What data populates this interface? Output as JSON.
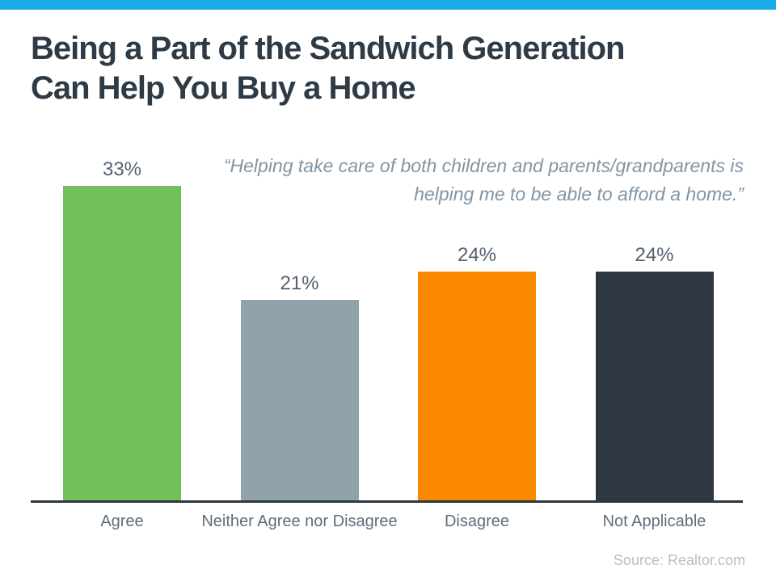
{
  "header": {
    "title": "Being a Part of the Sandwich Generation Can Help You Buy a Home",
    "title_lines": [
      "Being a Part of the Sandwich Generation",
      "Can Help You Buy a Home"
    ]
  },
  "quote": {
    "full": "“Helping take care of both children and parents/grandparents is helping me to be able to afford a home.”",
    "lines": [
      "“Helping take care of both children and parents/grandparents is",
      "helping me to be able to afford a home.”"
    ]
  },
  "footer": {
    "source": "Source: Realtor.com"
  },
  "colors": {
    "top_bar": "#18ABE9",
    "title": "#2E3A45",
    "quote": "#8294A3",
    "value_label": "#55616E",
    "category_label": "#5E6D7F",
    "axis": "#2E3740",
    "source": "#B5BFC9"
  },
  "chart_data": {
    "type": "bar",
    "title": "Being a Part of the Sandwich Generation Can Help You Buy a Home",
    "annotation": "“Helping take care of both children and parents/grandparents is helping me to be able to afford a home.”",
    "categories": [
      "Agree",
      "Neither Agree nor Disagree",
      "Disagree",
      "Not Applicable"
    ],
    "values": [
      33,
      21,
      24,
      24
    ],
    "value_labels": [
      "33%",
      "21%",
      "24%",
      "24%"
    ],
    "bar_colors": [
      "#72C05A",
      "#90A2AA",
      "#FC8A00",
      "#2E3740"
    ],
    "xlabel": "",
    "ylabel": "",
    "ylim": [
      0,
      35
    ],
    "grid": false,
    "legend": false
  }
}
